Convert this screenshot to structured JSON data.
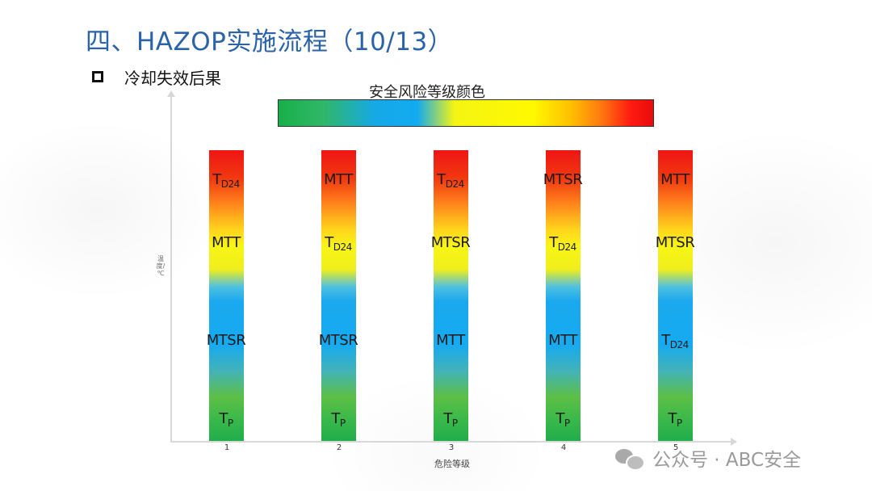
{
  "header": {
    "title": "四、HAZOP实施流程（10/13）",
    "bullet_text": "冷却失效后果"
  },
  "legend": {
    "label": "安全风险等级颜色",
    "gradient_colors": [
      "#18b04a",
      "#16a9e8",
      "#fff800",
      "#ffc000",
      "#ff1a10"
    ]
  },
  "axes": {
    "ylabel": "温度/℃",
    "xlabel": "危险等级"
  },
  "columns": [
    {
      "tick": "1",
      "labels": {
        "top": {
          "main": "T",
          "sub": "D24"
        },
        "upper": {
          "main": "MTT",
          "sub": ""
        },
        "middle": {
          "main": "MTSR",
          "sub": ""
        },
        "bottom": {
          "main": "T",
          "sub": "P"
        }
      }
    },
    {
      "tick": "2",
      "labels": {
        "top": {
          "main": "MTT",
          "sub": ""
        },
        "upper": {
          "main": "T",
          "sub": "D24"
        },
        "middle": {
          "main": "MTSR",
          "sub": ""
        },
        "bottom": {
          "main": "T",
          "sub": "P"
        }
      }
    },
    {
      "tick": "3",
      "labels": {
        "top": {
          "main": "T",
          "sub": "D24"
        },
        "upper": {
          "main": "MTSR",
          "sub": ""
        },
        "middle": {
          "main": "MTT",
          "sub": ""
        },
        "bottom": {
          "main": "T",
          "sub": "P"
        }
      }
    },
    {
      "tick": "4",
      "labels": {
        "top": {
          "main": "MTSR",
          "sub": ""
        },
        "upper": {
          "main": "T",
          "sub": "D24"
        },
        "middle": {
          "main": "MTT",
          "sub": ""
        },
        "bottom": {
          "main": "T",
          "sub": "P"
        }
      }
    },
    {
      "tick": "5",
      "labels": {
        "top": {
          "main": "MTT",
          "sub": ""
        },
        "upper": {
          "main": "MTSR",
          "sub": ""
        },
        "middle": {
          "main": "T",
          "sub": "D24"
        },
        "bottom": {
          "main": "T",
          "sub": "P"
        }
      }
    }
  ],
  "watermark": {
    "text": "公众号 · ABC安全",
    "icon": "wechat-icon"
  }
}
